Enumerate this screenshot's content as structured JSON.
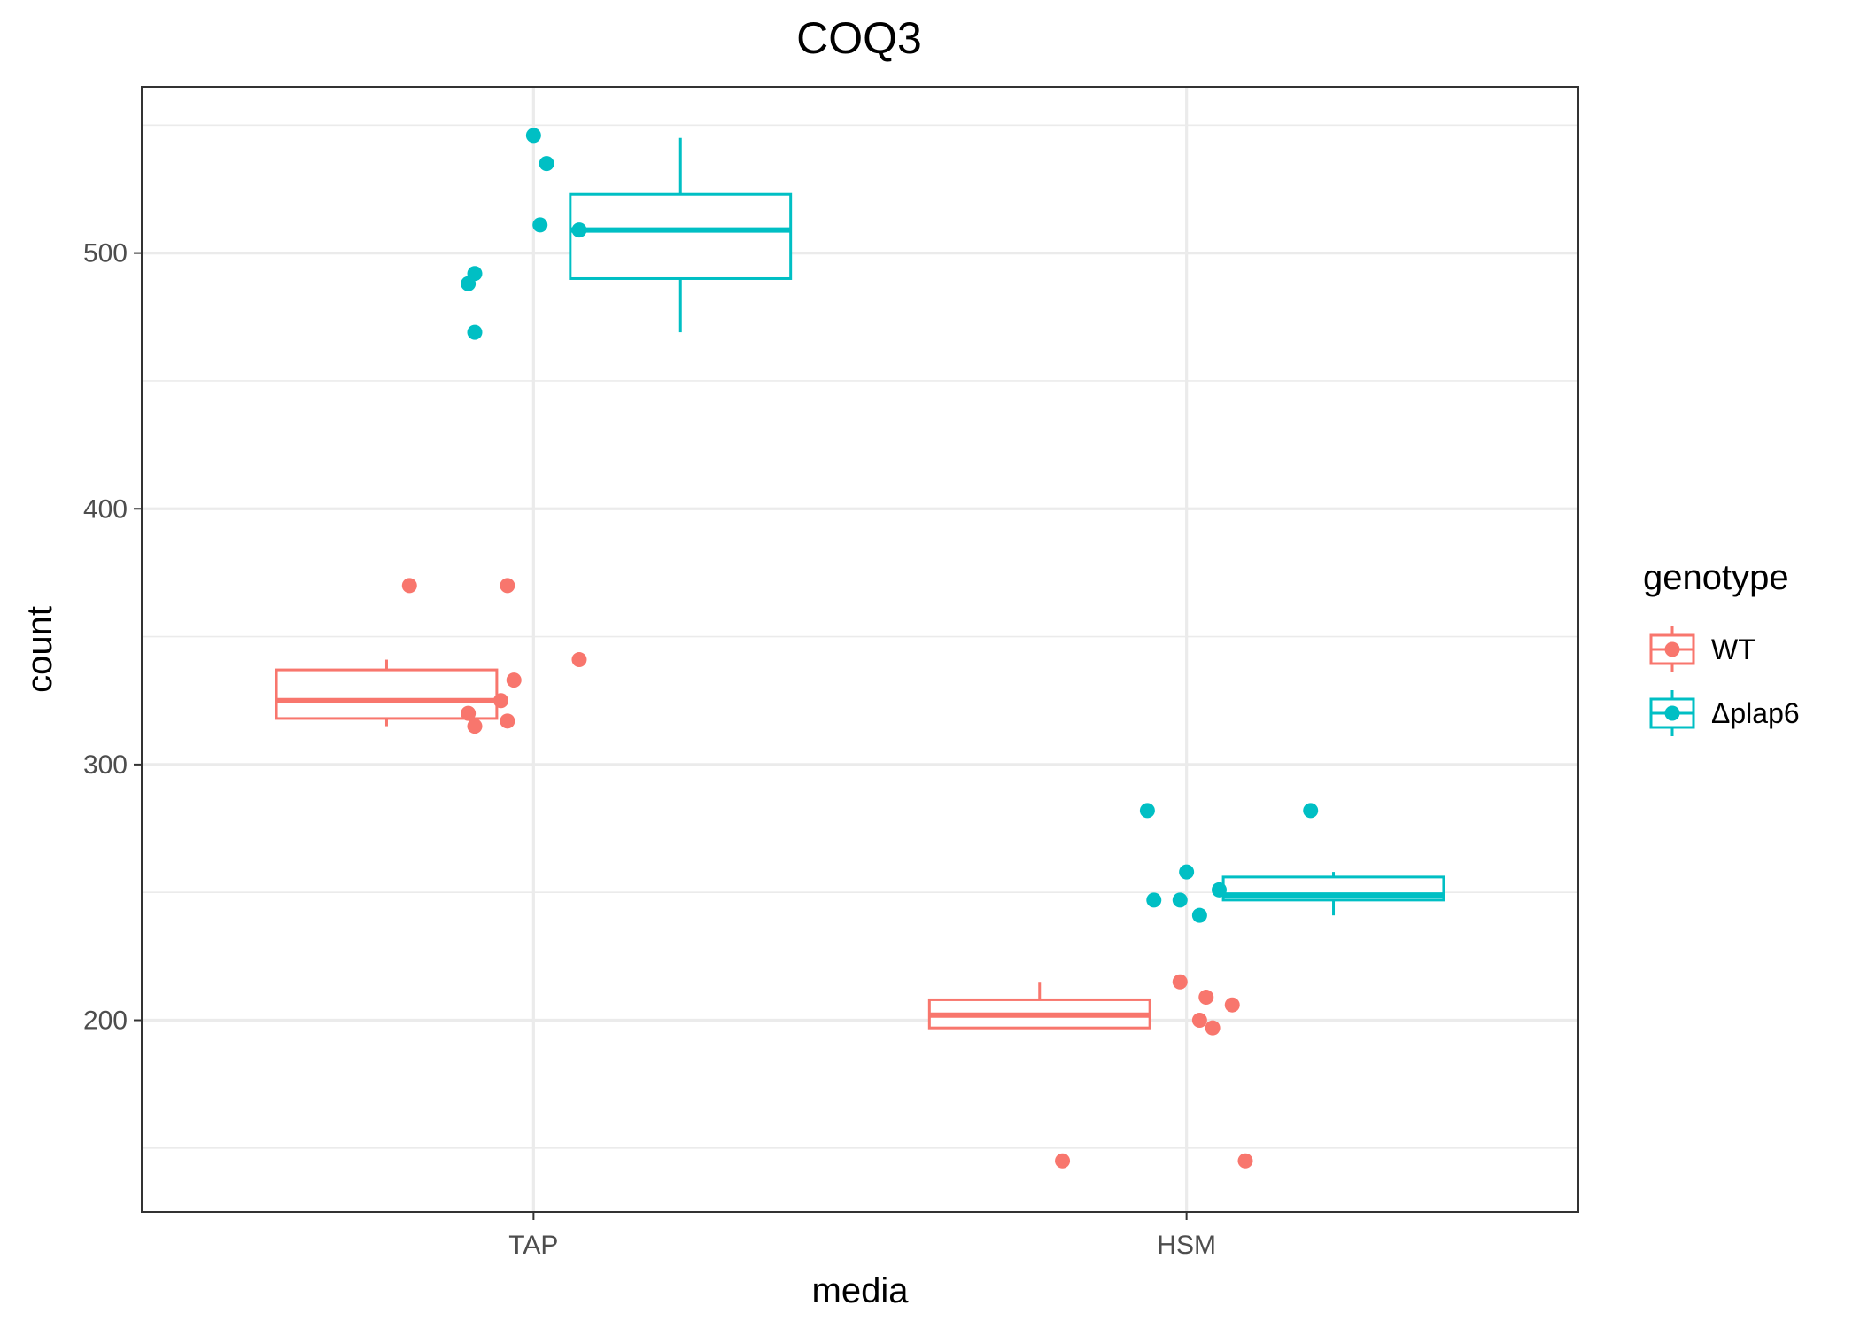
{
  "chart_data": {
    "type": "boxplot",
    "title": "COQ3",
    "xlabel": "media",
    "ylabel": "count",
    "categories": [
      "TAP",
      "HSM"
    ],
    "ylim": [
      125,
      565
    ],
    "yticks": [
      200,
      300,
      400,
      500
    ],
    "grid": true,
    "legend": {
      "title": "genotype",
      "position": "right"
    },
    "series": [
      {
        "name": "WT",
        "color": "#F8766D",
        "boxes": [
          {
            "category": "TAP",
            "whisker_low": 315,
            "q1": 318,
            "median": 325,
            "q3": 337,
            "whisker_high": 341
          },
          {
            "category": "HSM",
            "whisker_low": 197,
            "q1": 197,
            "median": 202,
            "q3": 208,
            "whisker_high": 215
          }
        ],
        "points": [
          {
            "category": "TAP",
            "jitter": -0.19,
            "y": 370
          },
          {
            "category": "TAP",
            "jitter": -0.1,
            "y": 320
          },
          {
            "category": "TAP",
            "jitter": -0.09,
            "y": 315
          },
          {
            "category": "TAP",
            "jitter": -0.05,
            "y": 325
          },
          {
            "category": "TAP",
            "jitter": -0.04,
            "y": 317
          },
          {
            "category": "TAP",
            "jitter": -0.04,
            "y": 370
          },
          {
            "category": "TAP",
            "jitter": -0.03,
            "y": 333
          },
          {
            "category": "TAP",
            "jitter": 0.07,
            "y": 341
          },
          {
            "category": "HSM",
            "jitter": -0.19,
            "y": 145
          },
          {
            "category": "HSM",
            "jitter": -0.01,
            "y": 215
          },
          {
            "category": "HSM",
            "jitter": 0.02,
            "y": 200
          },
          {
            "category": "HSM",
            "jitter": 0.03,
            "y": 209
          },
          {
            "category": "HSM",
            "jitter": 0.04,
            "y": 197
          },
          {
            "category": "HSM",
            "jitter": 0.07,
            "y": 206
          },
          {
            "category": "HSM",
            "jitter": 0.09,
            "y": 145
          }
        ]
      },
      {
        "name": "Δplap6",
        "color": "#00BFC4",
        "boxes": [
          {
            "category": "TAP",
            "whisker_low": 469,
            "q1": 490,
            "median": 509,
            "q3": 523,
            "whisker_high": 545
          },
          {
            "category": "HSM",
            "whisker_low": 241,
            "q1": 247,
            "median": 249,
            "q3": 256,
            "whisker_high": 258
          }
        ],
        "points": [
          {
            "category": "TAP",
            "jitter": -0.1,
            "y": 488
          },
          {
            "category": "TAP",
            "jitter": -0.09,
            "y": 492
          },
          {
            "category": "TAP",
            "jitter": -0.09,
            "y": 469
          },
          {
            "category": "TAP",
            "jitter": 0.0,
            "y": 546
          },
          {
            "category": "TAP",
            "jitter": 0.01,
            "y": 511
          },
          {
            "category": "TAP",
            "jitter": 0.02,
            "y": 535
          },
          {
            "category": "TAP",
            "jitter": 0.07,
            "y": 509
          },
          {
            "category": "HSM",
            "jitter": -0.06,
            "y": 282
          },
          {
            "category": "HSM",
            "jitter": -0.05,
            "y": 247
          },
          {
            "category": "HSM",
            "jitter": -0.01,
            "y": 247
          },
          {
            "category": "HSM",
            "jitter": 0.0,
            "y": 258
          },
          {
            "category": "HSM",
            "jitter": 0.02,
            "y": 241
          },
          {
            "category": "HSM",
            "jitter": 0.05,
            "y": 251
          },
          {
            "category": "HSM",
            "jitter": 0.19,
            "y": 282
          }
        ]
      }
    ]
  }
}
